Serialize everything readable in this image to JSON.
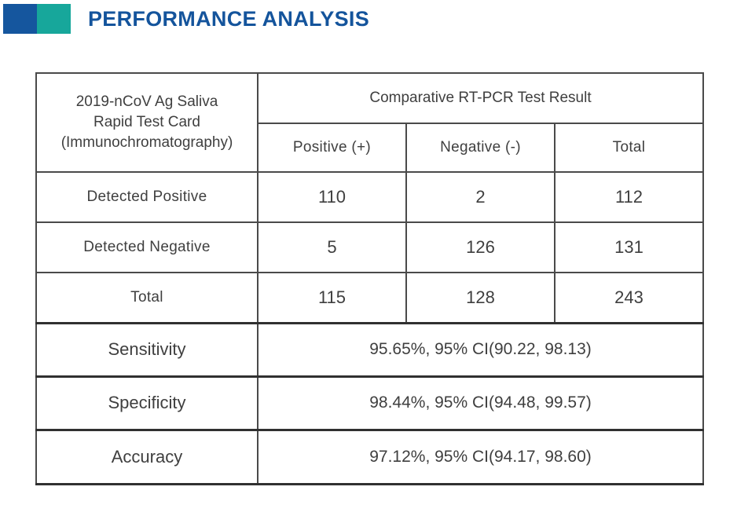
{
  "theme": {
    "accent_blue": "#15569E",
    "accent_teal": "#17A79B",
    "title_color": "#14549C",
    "border_color": "#4A4A4A",
    "border_dark": "#303030",
    "text_color": "#3F3F3F"
  },
  "header": {
    "title": "PERFORMANCE ANALYSIS"
  },
  "table": {
    "corner_label_lines": [
      "2019-nCoV Ag Saliva",
      "Rapid Test Card",
      "(Immunochromatography)"
    ],
    "group_header": "Comparative RT-PCR Test Result",
    "column_headers": [
      "Positive (+)",
      "Negative (-)",
      "Total"
    ],
    "rows": [
      {
        "label": "Detected Positive",
        "values": [
          "110",
          "2",
          "112"
        ]
      },
      {
        "label": "Detected Negative",
        "values": [
          "5",
          "126",
          "131"
        ]
      },
      {
        "label": "Total",
        "values": [
          "115",
          "128",
          "243"
        ]
      }
    ],
    "stats": [
      {
        "label": "Sensitivity",
        "value": "95.65%, 95% CI(90.22, 98.13)"
      },
      {
        "label": "Specificity",
        "value": "98.44%, 95% CI(94.48, 99.57)"
      },
      {
        "label": "Accuracy",
        "value": "97.12%, 95% CI(94.17, 98.60)"
      }
    ]
  }
}
